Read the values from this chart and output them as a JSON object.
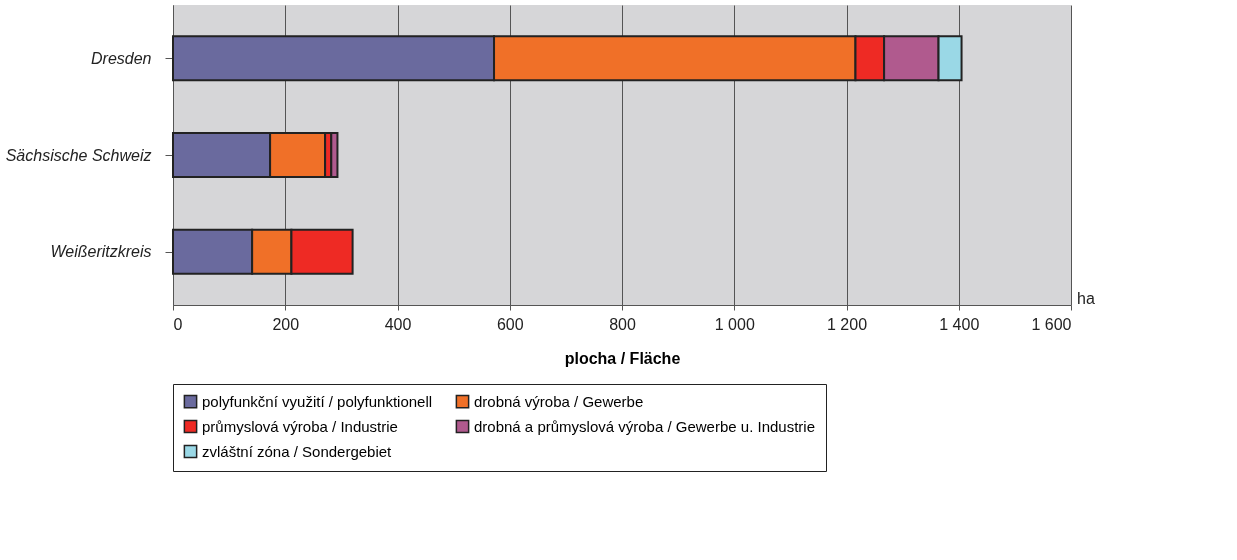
{
  "chart_data": {
    "type": "bar",
    "orientation": "horizontal",
    "stacked": true,
    "categories": [
      "Dresden",
      "Sächsische Schweiz",
      "Weißeritzkreis"
    ],
    "series": [
      {
        "name": "polyfunkční využití / polyfunktionell",
        "color": "#6a6a9e",
        "values": [
          572,
          173,
          141
        ]
      },
      {
        "name": "drobná výroba / Gewerbe",
        "color": "#f07028",
        "values": [
          644,
          98,
          70
        ]
      },
      {
        "name": "průmyslová výroba / Industrie",
        "color": "#ee2a24",
        "values": [
          51,
          11,
          109
        ]
      },
      {
        "name": "drobná a průmyslová výroba / Gewerbe u. Industrie",
        "color": "#b05a8e",
        "values": [
          97,
          11,
          null
        ]
      },
      {
        "name": "zvláštní zóna / Sondergebiet",
        "color": "#9ad8e6",
        "values": [
          41,
          null,
          null
        ]
      }
    ],
    "xlabel": "plocha / Fläche",
    "xlim": [
      0,
      1600
    ],
    "xticks": [
      0,
      200,
      400,
      600,
      800,
      {
        "value": 1000,
        "label": "1 000"
      },
      {
        "value": 1200,
        "label": "1 200"
      },
      {
        "value": 1400,
        "label": "1 400"
      },
      {
        "value": 1600,
        "label": "1 600"
      }
    ],
    "annotations": [
      "ha"
    ],
    "grid": "x",
    "legend": "bottom"
  }
}
